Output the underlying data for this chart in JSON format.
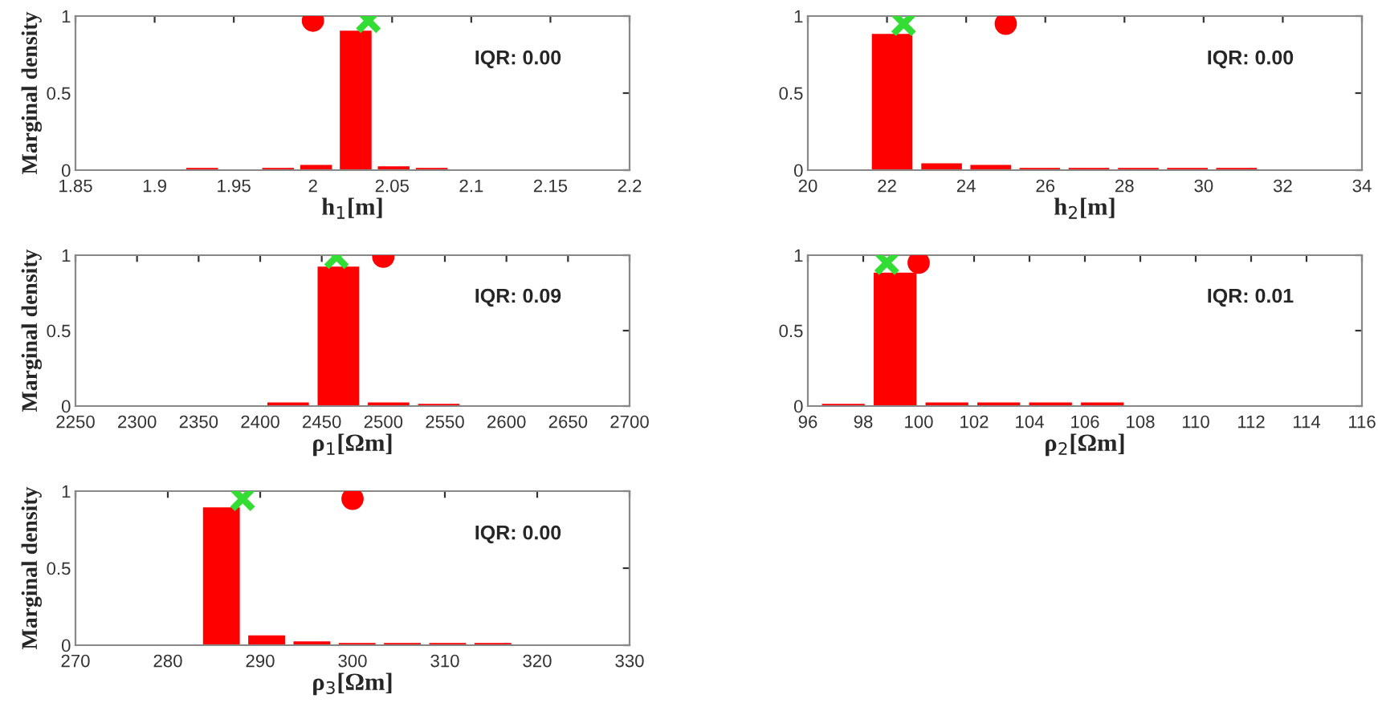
{
  "chart_data": [
    {
      "type": "bar",
      "xlabel": "h$_{1}$[m]",
      "ylabel": "Marginal density",
      "xlim": [
        1.85,
        2.2
      ],
      "xticks": [
        1.85,
        1.9,
        1.95,
        2,
        2.05,
        2.1,
        2.15,
        2.2
      ],
      "ylim": [
        0,
        1
      ],
      "yticks": [
        0,
        0.5,
        1
      ],
      "annotations": [
        "IQR: 0.00"
      ],
      "series": [
        {
          "color": "#ff0000",
          "x": [
            1.905,
            1.93,
            1.954,
            1.978,
            2.002,
            2.027,
            2.051,
            2.075,
            2.1,
            2.124
          ],
          "values": [
            0,
            0.01,
            0,
            0.01,
            0.03,
            0.9,
            0.02,
            0.01,
            0,
            0
          ]
        },
        {
          "type": "scatter",
          "marker": "circle",
          "color": "#ff0000",
          "x": [
            2.0
          ],
          "values": [
            0.97
          ]
        },
        {
          "type": "scatter",
          "marker": "cross",
          "color": "#33dd33",
          "x": [
            2.035
          ],
          "values": [
            0.97
          ]
        }
      ]
    },
    {
      "type": "bar",
      "xlabel": "h$_{2}$[m]",
      "xlim": [
        20,
        34
      ],
      "xticks": [
        20,
        22,
        24,
        26,
        28,
        30,
        32,
        34
      ],
      "ylim": [
        0,
        1
      ],
      "yticks": [
        0,
        0.5,
        1
      ],
      "annotations": [
        "IQR: 0.00"
      ],
      "series": [
        {
          "color": "#ff0000",
          "x": [
            22.13,
            23.38,
            24.62,
            25.86,
            27.1,
            28.35,
            29.59,
            30.83,
            32.07,
            33.32
          ],
          "values": [
            0.88,
            0.04,
            0.03,
            0.01,
            0.01,
            0.01,
            0.01,
            0.01,
            0,
            0
          ]
        },
        {
          "type": "scatter",
          "marker": "circle",
          "color": "#ff0000",
          "x": [
            25.0
          ],
          "values": [
            0.95
          ]
        },
        {
          "type": "scatter",
          "marker": "cross",
          "color": "#33dd33",
          "x": [
            22.42
          ],
          "values": [
            0.95
          ]
        }
      ]
    },
    {
      "type": "bar",
      "xlabel": "ρ$_{1}$[Ωm]",
      "ylabel": "Marginal density",
      "xlim": [
        2250,
        2700
      ],
      "xticks": [
        2250,
        2300,
        2350,
        2400,
        2450,
        2500,
        2550,
        2600,
        2650,
        2700
      ],
      "ylim": [
        0,
        1
      ],
      "yticks": [
        0,
        0.5,
        1
      ],
      "annotations": [
        "IQR: 0.09"
      ],
      "series": [
        {
          "color": "#ff0000",
          "x": [
            2300.3,
            2341.1,
            2381.9,
            2422.7,
            2463.5,
            2504.3,
            2545.1,
            2585.9,
            2626.7,
            2667.5
          ],
          "values": [
            0,
            0,
            0,
            0.02,
            0.92,
            0.02,
            0.01,
            0,
            0,
            0
          ]
        },
        {
          "type": "scatter",
          "marker": "circle",
          "color": "#ff0000",
          "x": [
            2500
          ],
          "values": [
            0.99
          ]
        },
        {
          "type": "scatter",
          "marker": "cross",
          "color": "#33dd33",
          "x": [
            2462
          ],
          "values": [
            0.99
          ]
        }
      ]
    },
    {
      "type": "bar",
      "xlabel": "ρ$_{2}$[Ωm]",
      "xlim": [
        96,
        116
      ],
      "xticks": [
        96,
        98,
        100,
        102,
        104,
        106,
        108,
        110,
        112,
        114,
        116
      ],
      "ylim": [
        0,
        1
      ],
      "yticks": [
        0,
        0.5,
        1
      ],
      "annotations": [
        "IQR: 0.01"
      ],
      "series": [
        {
          "color": "#ff0000",
          "x": [
            97.28,
            99.15,
            101.02,
            102.89,
            104.76,
            106.63,
            108.5,
            110.37,
            112.24,
            114.11
          ],
          "values": [
            0.01,
            0.88,
            0.02,
            0.02,
            0.02,
            0.02,
            0,
            0,
            0,
            0
          ]
        },
        {
          "type": "scatter",
          "marker": "circle",
          "color": "#ff0000",
          "x": [
            100
          ],
          "values": [
            0.95
          ]
        },
        {
          "type": "scatter",
          "marker": "cross",
          "color": "#33dd33",
          "x": [
            98.85
          ],
          "values": [
            0.95
          ]
        }
      ]
    },
    {
      "type": "bar",
      "xlabel": "ρ$_{3}$[Ωm]",
      "ylabel": "Marginal density",
      "xlim": [
        270,
        330
      ],
      "xticks": [
        270,
        280,
        290,
        300,
        310,
        320,
        330
      ],
      "ylim": [
        0,
        1
      ],
      "yticks": [
        0,
        0.5,
        1
      ],
      "annotations": [
        "IQR: 0.00"
      ],
      "series": [
        {
          "color": "#ff0000",
          "x": [
            281.0,
            285.8,
            290.7,
            295.6,
            300.5,
            305.4,
            310.3,
            315.2,
            320.1,
            325.0
          ],
          "values": [
            0,
            0.89,
            0.06,
            0.02,
            0.01,
            0.01,
            0.01,
            0.01,
            0,
            0
          ]
        },
        {
          "type": "scatter",
          "marker": "circle",
          "color": "#ff0000",
          "x": [
            300
          ],
          "values": [
            0.95
          ]
        },
        {
          "type": "scatter",
          "marker": "cross",
          "color": "#33dd33",
          "x": [
            288.1
          ],
          "values": [
            0.95
          ]
        }
      ]
    }
  ]
}
